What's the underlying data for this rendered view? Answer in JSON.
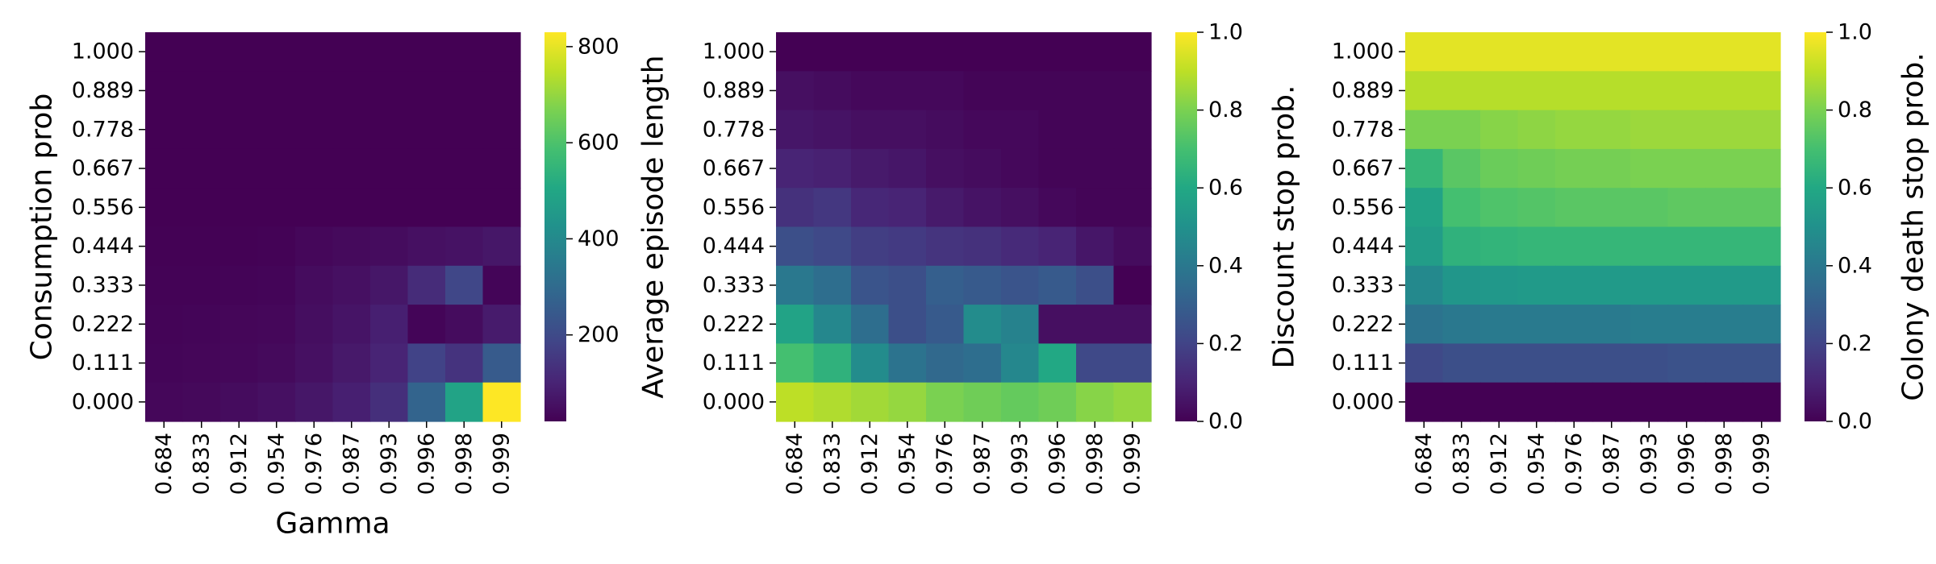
{
  "chart_data": [
    {
      "type": "heatmap",
      "xlabel": "Gamma",
      "ylabel": "Consumption prob",
      "x_categories": [
        "0.684",
        "0.833",
        "0.912",
        "0.954",
        "0.976",
        "0.987",
        "0.993",
        "0.996",
        "0.998",
        "0.999"
      ],
      "y_categories": [
        "1.000",
        "0.889",
        "0.778",
        "0.667",
        "0.556",
        "0.444",
        "0.333",
        "0.222",
        "0.111",
        "0.000"
      ],
      "colormap": "viridis",
      "colorbar": {
        "label": "Average episode length",
        "vmin": 20,
        "vmax": 830,
        "ticks": [
          "200",
          "400",
          "600",
          "800"
        ],
        "tick_values": [
          200,
          400,
          600,
          800
        ]
      },
      "values": [
        [
          20,
          20,
          20,
          20,
          20,
          20,
          20,
          20,
          20,
          20
        ],
        [
          20,
          20,
          20,
          20,
          20,
          20,
          20,
          20,
          20,
          20
        ],
        [
          20,
          20,
          20,
          20,
          20,
          20,
          20,
          20,
          20,
          20
        ],
        [
          20,
          20,
          20,
          20,
          20,
          20,
          20,
          20,
          20,
          20
        ],
        [
          20,
          20,
          20,
          20,
          20,
          20,
          20,
          20,
          20,
          20
        ],
        [
          22,
          22,
          23,
          25,
          35,
          40,
          45,
          55,
          60,
          70
        ],
        [
          24,
          25,
          28,
          30,
          45,
          55,
          70,
          120,
          190,
          30
        ],
        [
          28,
          30,
          32,
          35,
          50,
          65,
          90,
          30,
          45,
          80
        ],
        [
          30,
          32,
          35,
          40,
          55,
          75,
          100,
          180,
          140,
          250
        ],
        [
          35,
          38,
          45,
          55,
          70,
          90,
          130,
          280,
          490,
          830
        ]
      ]
    },
    {
      "type": "heatmap",
      "xlabel": "",
      "ylabel": "",
      "x_categories": [
        "0.684",
        "0.833",
        "0.912",
        "0.954",
        "0.976",
        "0.987",
        "0.993",
        "0.996",
        "0.998",
        "0.999"
      ],
      "y_categories": [
        "1.000",
        "0.889",
        "0.778",
        "0.667",
        "0.556",
        "0.444",
        "0.333",
        "0.222",
        "0.111",
        "0.000"
      ],
      "colormap": "viridis",
      "colorbar": {
        "label": "Discount stop prob.",
        "vmin": 0,
        "vmax": 1,
        "ticks": [
          "0.0",
          "0.2",
          "0.4",
          "0.6",
          "0.8",
          "1.0"
        ],
        "tick_values": [
          0,
          0.2,
          0.4,
          0.6,
          0.8,
          1.0
        ]
      },
      "values": [
        [
          0.0,
          0.0,
          0.0,
          0.0,
          0.0,
          0.0,
          0.0,
          0.0,
          0.0,
          0.0
        ],
        [
          0.04,
          0.03,
          0.02,
          0.02,
          0.02,
          0.01,
          0.01,
          0.01,
          0.01,
          0.01
        ],
        [
          0.06,
          0.05,
          0.04,
          0.04,
          0.03,
          0.02,
          0.02,
          0.01,
          0.01,
          0.01
        ],
        [
          0.1,
          0.09,
          0.07,
          0.06,
          0.04,
          0.03,
          0.02,
          0.01,
          0.01,
          0.01
        ],
        [
          0.14,
          0.16,
          0.11,
          0.1,
          0.07,
          0.05,
          0.04,
          0.02,
          0.01,
          0.01
        ],
        [
          0.24,
          0.22,
          0.18,
          0.17,
          0.15,
          0.14,
          0.12,
          0.1,
          0.06,
          0.03
        ],
        [
          0.4,
          0.36,
          0.26,
          0.24,
          0.3,
          0.28,
          0.26,
          0.28,
          0.24,
          0.0
        ],
        [
          0.58,
          0.46,
          0.36,
          0.24,
          0.28,
          0.48,
          0.44,
          0.04,
          0.04,
          0.04
        ],
        [
          0.7,
          0.64,
          0.48,
          0.38,
          0.34,
          0.36,
          0.46,
          0.6,
          0.22,
          0.22
        ],
        [
          0.9,
          0.88,
          0.86,
          0.84,
          0.8,
          0.78,
          0.76,
          0.78,
          0.82,
          0.84
        ]
      ]
    },
    {
      "type": "heatmap",
      "xlabel": "",
      "ylabel": "",
      "x_categories": [
        "0.684",
        "0.833",
        "0.912",
        "0.954",
        "0.976",
        "0.987",
        "0.993",
        "0.996",
        "0.998",
        "0.999"
      ],
      "y_categories": [
        "1.000",
        "0.889",
        "0.778",
        "0.667",
        "0.556",
        "0.444",
        "0.333",
        "0.222",
        "0.111",
        "0.000"
      ],
      "colormap": "viridis",
      "colorbar": {
        "label": "Colony death stop prob.",
        "vmin": 0,
        "vmax": 1,
        "ticks": [
          "0.0",
          "0.2",
          "0.4",
          "0.6",
          "0.8",
          "1.0"
        ],
        "tick_values": [
          0,
          0.2,
          0.4,
          0.6,
          0.8,
          1.0
        ]
      },
      "values": [
        [
          0.96,
          0.96,
          0.96,
          0.96,
          0.96,
          0.96,
          0.96,
          0.96,
          0.96,
          0.96
        ],
        [
          0.89,
          0.89,
          0.89,
          0.89,
          0.89,
          0.89,
          0.89,
          0.89,
          0.89,
          0.89
        ],
        [
          0.8,
          0.8,
          0.82,
          0.83,
          0.84,
          0.84,
          0.85,
          0.85,
          0.85,
          0.85
        ],
        [
          0.66,
          0.74,
          0.77,
          0.78,
          0.79,
          0.79,
          0.8,
          0.8,
          0.8,
          0.8
        ],
        [
          0.58,
          0.7,
          0.72,
          0.73,
          0.74,
          0.74,
          0.74,
          0.75,
          0.75,
          0.75
        ],
        [
          0.55,
          0.64,
          0.65,
          0.66,
          0.66,
          0.66,
          0.66,
          0.66,
          0.66,
          0.66
        ],
        [
          0.47,
          0.52,
          0.53,
          0.54,
          0.54,
          0.54,
          0.54,
          0.54,
          0.54,
          0.54
        ],
        [
          0.38,
          0.4,
          0.41,
          0.41,
          0.41,
          0.41,
          0.42,
          0.42,
          0.42,
          0.42
        ],
        [
          0.22,
          0.24,
          0.24,
          0.24,
          0.24,
          0.24,
          0.24,
          0.25,
          0.25,
          0.25
        ],
        [
          0.0,
          0.0,
          0.0,
          0.0,
          0.0,
          0.0,
          0.0,
          0.0,
          0.0,
          0.0
        ]
      ]
    }
  ]
}
